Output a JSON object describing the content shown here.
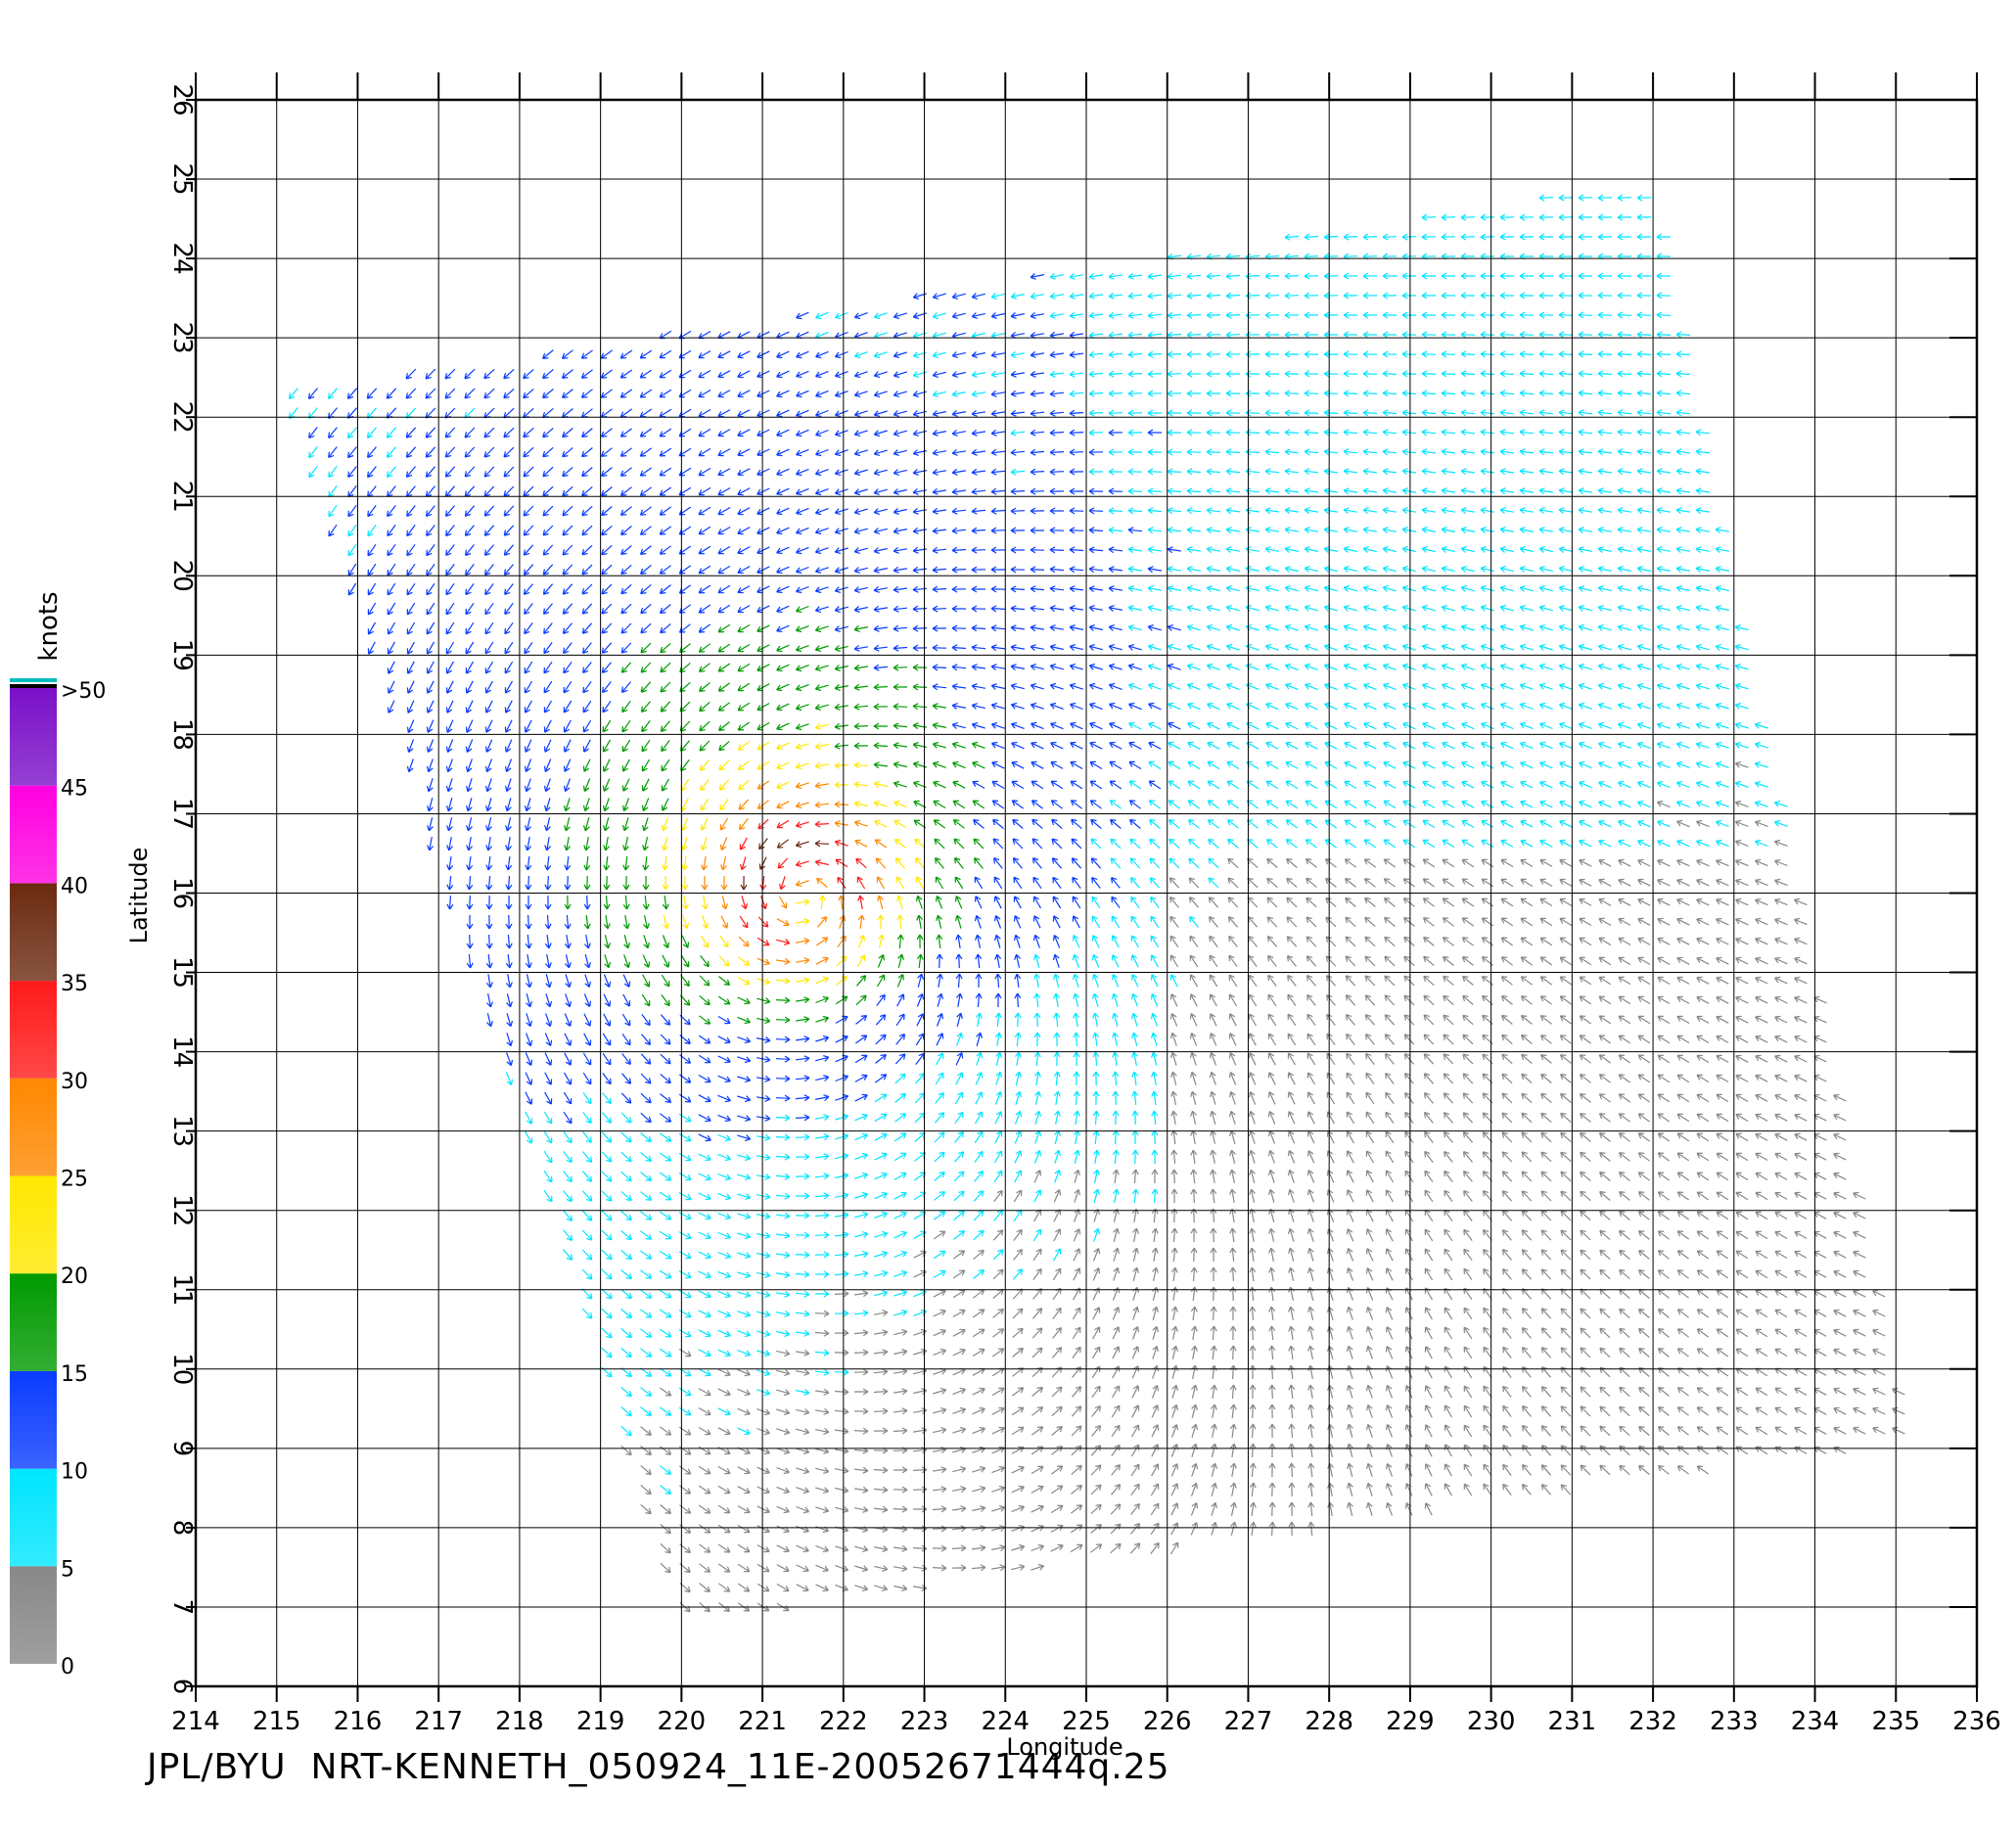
{
  "footer": "JPL/BYU  NRT-KENNETH_050924_11E-20052671444q.25",
  "axes": {
    "xlabel": "Longitude",
    "ylabel": "Latitude",
    "lon_range": [
      214,
      236
    ],
    "lat_range": [
      6,
      26
    ],
    "lon_ticks": [
      "214",
      "215",
      "216",
      "217",
      "218",
      "219",
      "220",
      "221",
      "222",
      "223",
      "224",
      "225",
      "226",
      "227",
      "228",
      "229",
      "230",
      "231",
      "232",
      "233",
      "234",
      "235",
      "236"
    ],
    "lat_ticks": [
      "6",
      "7",
      "8",
      "9",
      "10",
      "11",
      "12",
      "13",
      "14",
      "15",
      "16",
      "17",
      "18",
      "19",
      "20",
      "21",
      "22",
      "23",
      "24",
      "25",
      "26"
    ],
    "grid": true
  },
  "legend": {
    "title": "knots",
    "labels": [
      "0",
      "5",
      "10",
      "15",
      "20",
      "25",
      "30",
      "35",
      "40",
      "45",
      ">50"
    ],
    "colors": [
      "#888888",
      "#00e5ff",
      "#0a3cff",
      "#009a00",
      "#ffe800",
      "#ff8800",
      "#ff1a1a",
      "#6b2a10",
      "#ff00e0",
      "#7a10c8"
    ]
  },
  "storm": {
    "center_lon": 221.5,
    "center_lat": 16.0
  },
  "swath_corners": [
    [
      215.1,
      22.3
    ],
    [
      232.0,
      25.0
    ],
    [
      235.2,
      9.1
    ],
    [
      220.0,
      6.8
    ]
  ]
}
